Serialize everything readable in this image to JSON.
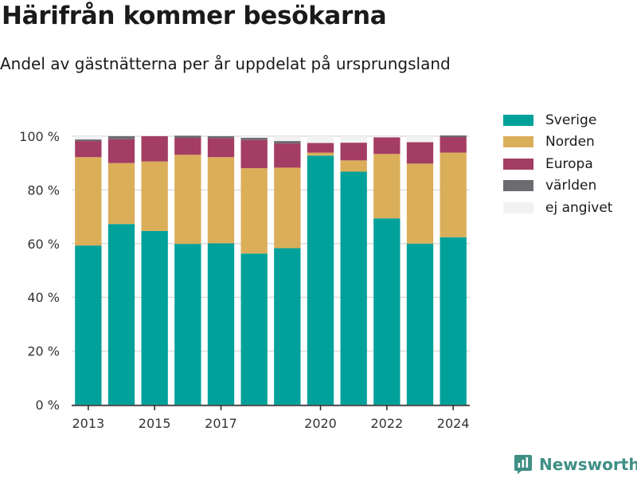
{
  "header": {
    "title": "Härifrån kommer besökarna",
    "subtitle": "Andel av gästnätterna per år uppdelat på ursprungsland"
  },
  "brand": {
    "name": "Newsworthy",
    "icon": "newsworthy-logo-icon"
  },
  "colors": {
    "Sverige": "#00a19a",
    "Norden": "#dbae5a",
    "Europa": "#a43d64",
    "världen": "#6b6b70",
    "ej angivet": "#f2f2f3"
  },
  "chart_data": {
    "type": "bar",
    "stacked": true,
    "x": [
      2013,
      2014,
      2015,
      2016,
      2017,
      2018,
      2019,
      2020,
      2021,
      2022,
      2023,
      2024
    ],
    "x_tick_labels": [
      "2013",
      "2015",
      "2017",
      "2020",
      "2022",
      "2024"
    ],
    "x_tick_values": [
      2013,
      2015,
      2017,
      2020,
      2022,
      2024
    ],
    "series": [
      {
        "name": "Sverige",
        "values": [
          59.3,
          67.3,
          64.7,
          59.9,
          60.1,
          56.3,
          58.3,
          92.8,
          86.8,
          69.4,
          60.0,
          62.4
        ]
      },
      {
        "name": "Norden",
        "values": [
          32.9,
          22.7,
          25.9,
          33.2,
          32.1,
          31.8,
          30.0,
          1.1,
          4.2,
          24.0,
          29.8,
          31.5
        ]
      },
      {
        "name": "Europa",
        "values": [
          6.0,
          8.9,
          9.4,
          6.3,
          7.1,
          10.5,
          9.0,
          3.6,
          6.6,
          6.2,
          8.0,
          5.8
        ]
      },
      {
        "name": "världen",
        "values": [
          0.6,
          1.1,
          0.0,
          0.8,
          0.7,
          0.8,
          0.9,
          0.0,
          0.0,
          0.0,
          0.0,
          0.6
        ]
      },
      {
        "name": "ej angivet",
        "values": [
          1.2,
          0.0,
          0.0,
          0.0,
          0.0,
          0.6,
          1.8,
          2.5,
          2.4,
          0.4,
          2.2,
          0.0
        ]
      }
    ],
    "y_ticks": [
      0,
      20,
      40,
      60,
      80,
      100
    ],
    "y_tick_labels": [
      "0 %",
      "20 %",
      "40 %",
      "60 %",
      "80 %",
      "100 %"
    ],
    "ylim": [
      0,
      100
    ],
    "grid": true,
    "legend": "right"
  }
}
